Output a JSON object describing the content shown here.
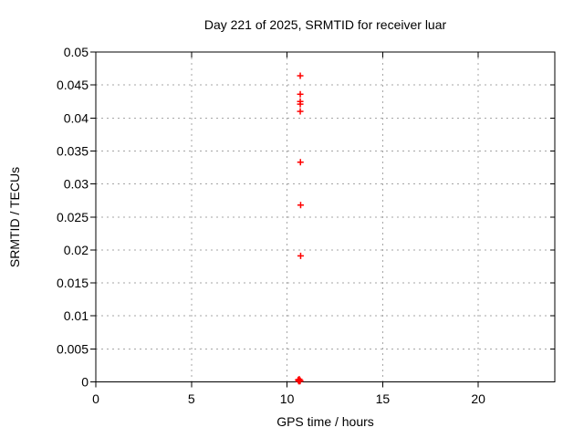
{
  "chart_data": {
    "type": "scatter",
    "title": "Day 221 of 2025, SRMTID for receiver luar",
    "xlabel": "GPS time / hours",
    "ylabel": "SRMTID / TECUs",
    "xlim": [
      0,
      24
    ],
    "ylim": [
      0,
      0.05
    ],
    "grid": true,
    "legend_position": "none",
    "marker": "plus",
    "marker_color": "#ff0000",
    "grid_color": "#a6a6a6",
    "axis_color": "#000000",
    "background_color": "#ffffff",
    "xticks": [
      {
        "v": 0,
        "label": "0"
      },
      {
        "v": 5,
        "label": "5"
      },
      {
        "v": 10,
        "label": "10"
      },
      {
        "v": 15,
        "label": "15"
      },
      {
        "v": 20,
        "label": "20"
      }
    ],
    "yticks": [
      {
        "v": 0,
        "label": "0"
      },
      {
        "v": 0.005,
        "label": "0.005"
      },
      {
        "v": 0.01,
        "label": "0.01"
      },
      {
        "v": 0.015,
        "label": "0.015"
      },
      {
        "v": 0.02,
        "label": "0.02"
      },
      {
        "v": 0.025,
        "label": "0.025"
      },
      {
        "v": 0.03,
        "label": "0.03"
      },
      {
        "v": 0.035,
        "label": "0.035"
      },
      {
        "v": 0.04,
        "label": "0.04"
      },
      {
        "v": 0.045,
        "label": "0.045"
      },
      {
        "v": 0.05,
        "label": "0.05"
      }
    ],
    "series": [
      {
        "name": "SRMTID",
        "points": [
          [
            10.69,
            0.0464
          ],
          [
            10.69,
            0.0436
          ],
          [
            10.69,
            0.0425
          ],
          [
            10.69,
            0.0421
          ],
          [
            10.69,
            0.041
          ],
          [
            10.7,
            0.0333
          ],
          [
            10.71,
            0.0268
          ],
          [
            10.71,
            0.0191
          ],
          [
            10.58,
            0.0003
          ],
          [
            10.61,
            0.0001
          ],
          [
            10.64,
            0.0004
          ],
          [
            10.67,
            0.0001
          ],
          [
            10.69,
            0.0002
          ]
        ]
      }
    ]
  }
}
